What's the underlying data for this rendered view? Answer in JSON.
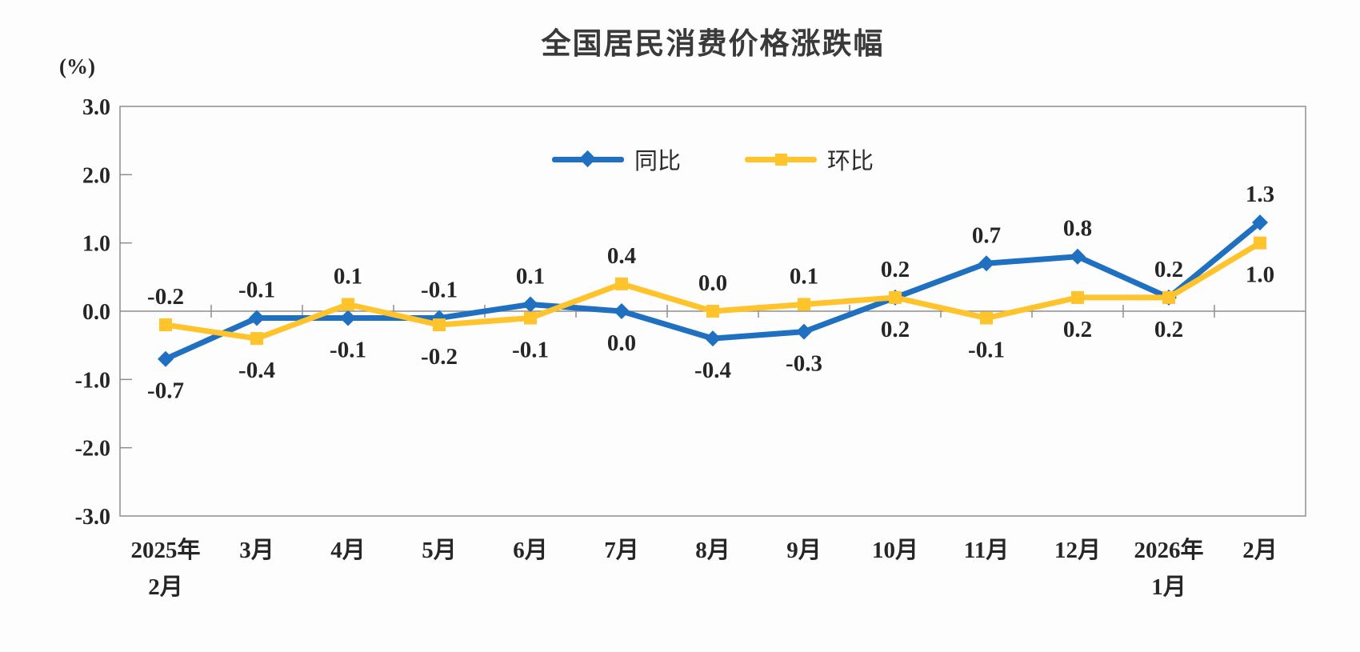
{
  "chart_data": {
    "type": "line",
    "title": "全国居民消费价格涨跌幅",
    "ylabel": "(%)",
    "ylim": [
      -3,
      3
    ],
    "ytick_values": [
      3,
      2,
      1,
      0,
      -1,
      -2,
      -3
    ],
    "grid": false,
    "legend_position": "top-center",
    "axis_color": "#8f8f8f",
    "text_color": "#262626",
    "categories": [
      [
        "2025年",
        "2月"
      ],
      [
        "3月"
      ],
      [
        "4月"
      ],
      [
        "5月"
      ],
      [
        "6月"
      ],
      [
        "7月"
      ],
      [
        "8月"
      ],
      [
        "9月"
      ],
      [
        "10月"
      ],
      [
        "11月"
      ],
      [
        "12月"
      ],
      [
        "2026年",
        "1月"
      ],
      [
        "2月"
      ]
    ],
    "series": [
      {
        "name": "同比",
        "color": "#1f70c1",
        "marker": "diamond",
        "values": [
          -0.7,
          -0.1,
          -0.1,
          -0.1,
          0.1,
          0.0,
          -0.4,
          -0.3,
          0.2,
          0.7,
          0.8,
          0.2,
          1.3
        ],
        "label_positions": [
          "below",
          "above",
          "below",
          "above",
          "above",
          "below",
          "below",
          "below",
          "above",
          "above",
          "above",
          "above",
          "above"
        ]
      },
      {
        "name": "环比",
        "color": "#ffc32b",
        "marker": "square",
        "values": [
          -0.2,
          -0.4,
          0.1,
          -0.2,
          -0.1,
          0.4,
          0.0,
          0.1,
          0.2,
          -0.1,
          0.2,
          0.2,
          1.0
        ],
        "label_positions": [
          "above",
          "below",
          "above",
          "below",
          "below",
          "above",
          "above",
          "above",
          "below",
          "below",
          "below",
          "below",
          "below"
        ]
      }
    ]
  }
}
